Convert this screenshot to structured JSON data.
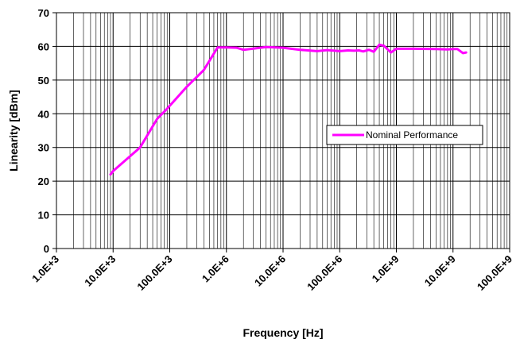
{
  "chart_data": {
    "type": "line",
    "x_scale": "log",
    "xlabel": "Frequency [Hz]",
    "ylabel": "Linearity [dBm]",
    "xlim": [
      1000,
      100000000000
    ],
    "ylim": [
      0,
      70
    ],
    "y_ticks": [
      0,
      10,
      20,
      30,
      40,
      50,
      60,
      70
    ],
    "x_tick_values": [
      1000,
      10000,
      100000,
      1000000,
      10000000,
      100000000,
      1000000000,
      10000000000,
      100000000000
    ],
    "x_tick_labels": [
      "1.0E+3",
      "10.0E+3",
      "100.0E+3",
      "1.0E+6",
      "10.0E+6",
      "100.0E+6",
      "1.0E+9",
      "10.0E+9",
      "100.0E+9"
    ],
    "grid": true,
    "legend_position": "right",
    "series": [
      {
        "name": "Nominal Performance",
        "color": "#ff00ff",
        "x": [
          9000,
          10000,
          30000,
          60000,
          90000,
          200000,
          400000,
          700000,
          1000000,
          1500000,
          2000000,
          5000000,
          10000000,
          20000000,
          40000000,
          60000000,
          100000000,
          140000000,
          180000000,
          220000000,
          260000000,
          330000000,
          400000000,
          500000000,
          600000000,
          800000000,
          1000000000,
          2000000000,
          5000000000,
          8000000000,
          10000000000,
          12000000000,
          15000000000,
          17000000000
        ],
        "y": [
          22,
          23,
          30,
          38.5,
          41.5,
          48,
          53,
          59.7,
          59.7,
          59.6,
          59,
          59.8,
          59.6,
          59,
          58.6,
          58.9,
          58.6,
          58.8,
          58.7,
          58.8,
          58.5,
          59,
          58.4,
          60.5,
          60.2,
          58.2,
          59.3,
          59.3,
          59.2,
          59.1,
          59.2,
          59.2,
          58,
          58.2
        ]
      }
    ]
  }
}
